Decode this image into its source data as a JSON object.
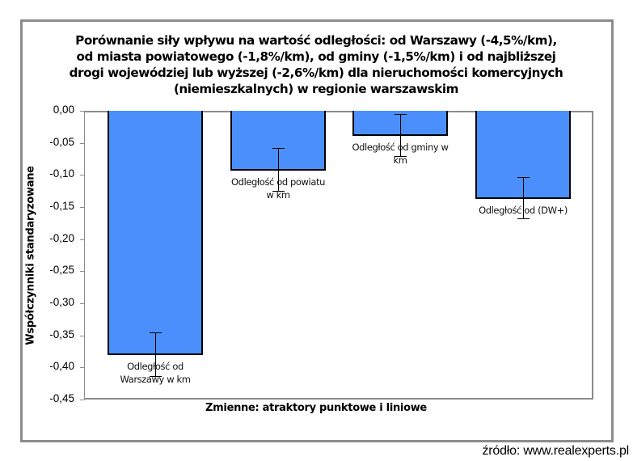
{
  "chart_data": {
    "type": "bar",
    "title": "Porównanie siły wpływu na wartość odległości: od Warszawy (-4,5%/km), od miasta powiatowego (-1,8%/km),  od gminy (-1,5%/km) i od najbliższej drogi wojewódziej lub wyższej  (-2,6%/km) dla nieruchomości komercyjnych (niemieszkalnych) w regionie warszawskim",
    "title_lines": [
      "Porównanie siły wpływu na wartość odległości: od Warszawy (-4,5%/km),",
      "od miasta  powiatowego (-1,8%/km),  od gminy (-1,5%/km) i od najbliższej",
      "drogi wojewódziej lub wyższej  (-2,6%/km) dla nieruchomości komercyjnych",
      "(niemieszkalnych) w regionie warszawskim"
    ],
    "xlabel": "Zmienne: atraktory punktowe i liniowe",
    "ylabel": "Współczynniki standaryzowane",
    "ylim": [
      -0.45,
      0.0
    ],
    "yticks": [
      "0,00",
      "-0,05",
      "-0,10",
      "-0,15",
      "-0,20",
      "-0,25",
      "-0,30",
      "-0,35",
      "-0,40",
      "-0,45"
    ],
    "grid": false,
    "legend": null,
    "categories": [
      "Odległość od Warszawy w km",
      "Odległość od powiatu w km",
      "Odległość od gminy w km",
      "Odległość od (DW+)"
    ],
    "category_label_lines": [
      [
        "Odległość  od",
        "Warszawy w km"
      ],
      [
        "Odległość od powiatu",
        "w km"
      ],
      [
        "Odległość od gminy w",
        "km"
      ],
      [
        "Odległość od (DW+)"
      ]
    ],
    "values": [
      -0.38,
      -0.092,
      -0.038,
      -0.136
    ],
    "error_bars": [
      {
        "upper": -0.345,
        "lower": -0.413
      },
      {
        "upper": -0.058,
        "lower": -0.125
      },
      {
        "upper": -0.005,
        "lower": -0.071
      },
      {
        "upper": -0.103,
        "lower": -0.168
      }
    ],
    "bar_color": "#4a8ffb"
  },
  "source": "źródło: www.realexperts.pl"
}
